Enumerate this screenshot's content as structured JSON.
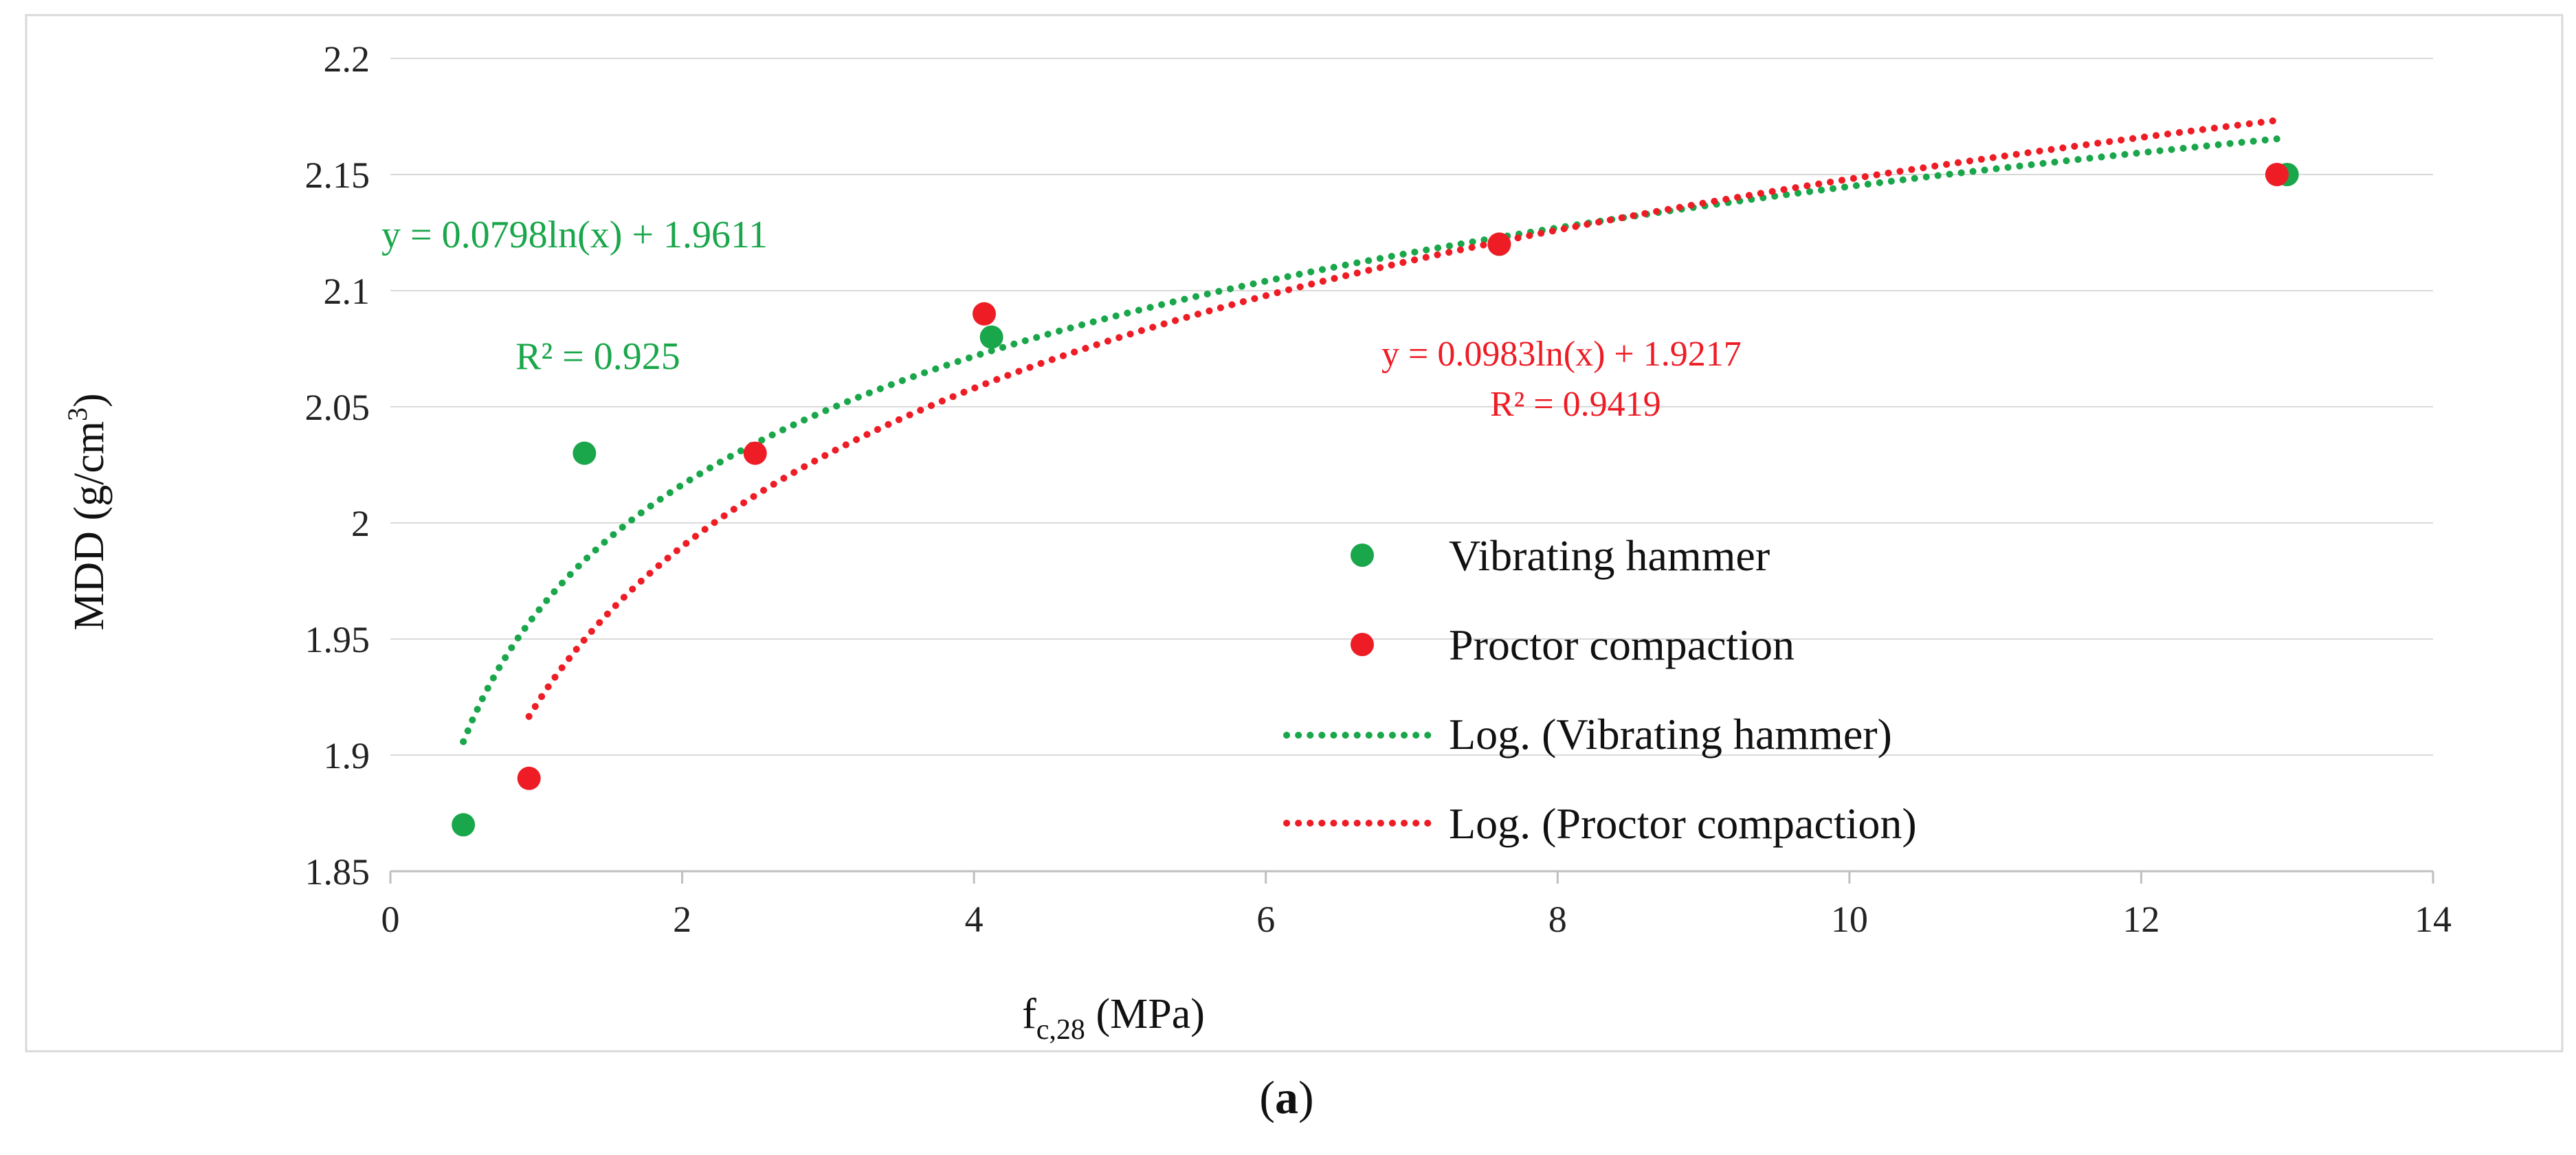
{
  "chart_data": {
    "type": "scatter",
    "title": "",
    "xlabel": "f",
    "xlabel_sub": "c,28",
    "xlabel_unit": " (MPa)",
    "ylabel": "MDD (g/cm",
    "ylabel_sup": "3",
    "ylabel_end": ")",
    "xlim": [
      0,
      14
    ],
    "ylim": [
      1.85,
      2.2
    ],
    "xticks": [
      "0",
      "2",
      "4",
      "6",
      "8",
      "10",
      "12",
      "14"
    ],
    "yticks": [
      "1.85",
      "1.9",
      "1.95",
      "2",
      "2.05",
      "2.1",
      "2.15",
      "2.2"
    ],
    "grid": "horizontal",
    "legend_position": "center-right",
    "series": [
      {
        "name": "Vibrating hammer",
        "color": "#1aa64a",
        "points": [
          [
            0.5,
            1.87
          ],
          [
            1.33,
            2.03
          ],
          [
            4.12,
            2.08
          ],
          [
            7.6,
            2.12
          ],
          [
            13.0,
            2.15
          ]
        ],
        "trendline": {
          "name": "Log. (Vibrating hammer)",
          "a": 0.0798,
          "b": 1.9611,
          "x_range": [
            0.5,
            13.0
          ],
          "equation": "y = 0.0798ln(x) + 1.9611",
          "r2": "R² = 0.925"
        }
      },
      {
        "name": "Proctor compaction",
        "color": "#ee1c25",
        "points": [
          [
            0.95,
            1.89
          ],
          [
            2.5,
            2.03
          ],
          [
            4.07,
            2.09
          ],
          [
            7.6,
            2.12
          ],
          [
            12.93,
            2.15
          ]
        ],
        "trendline": {
          "name": "Log. (Proctor compaction)",
          "a": 0.0983,
          "b": 1.9217,
          "x_range": [
            0.95,
            12.93
          ],
          "equation": "y = 0.0983ln(x) + 1.9217",
          "r2": "R² = 0.9419"
        }
      }
    ],
    "panel_label": "a"
  }
}
